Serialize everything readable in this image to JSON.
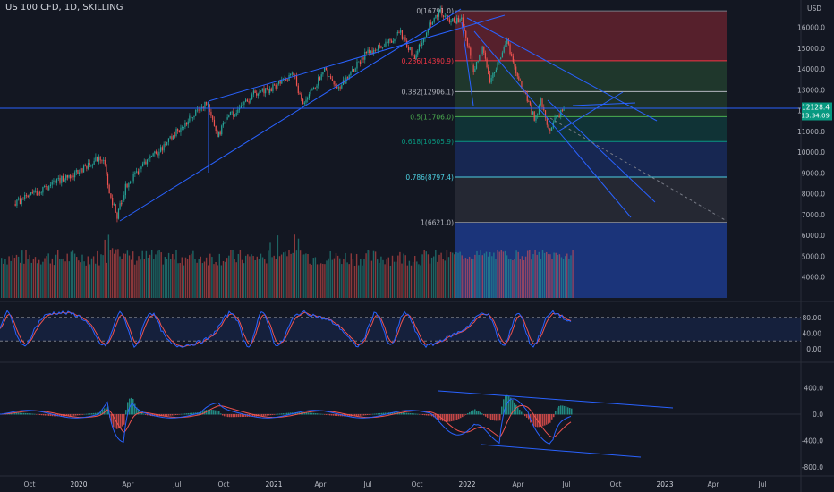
{
  "header": {
    "symbol_line": "US 100 CFD, 1D, SKILLING"
  },
  "colors": {
    "background": "#131722",
    "up": "#26a69a",
    "down": "#ef5350",
    "line": "#2962ff",
    "stoch_k": "#2962ff",
    "stoch_d": "#ef5350",
    "axis_text": "#b2b5be"
  },
  "chart_data": [
    {
      "type": "candlestick",
      "title": "US 100 CFD, 1D, SKILLING",
      "price_axis": {
        "unit_label": "USD",
        "ticks": [
          "16000.0",
          "15000.0",
          "14000.0",
          "13000.0",
          "12000.0",
          "11000.0",
          "10000.0",
          "9000.0",
          "8000.0",
          "7000.0",
          "6000.0",
          "5000.0",
          "4000.0"
        ],
        "current_price": "12128.4",
        "countdown": "13:34:09"
      },
      "time_axis": {
        "labels": [
          "Oct",
          "2020",
          "Apr",
          "Jul",
          "Oct",
          "2021",
          "Apr",
          "Jul",
          "Oct",
          "2022",
          "Apr",
          "Jul",
          "Oct",
          "2023",
          "Apr",
          "Jul"
        ]
      },
      "fibonacci": {
        "levels": [
          {
            "ratio": "0",
            "price": "16791.0",
            "label": "0(16791.0)"
          },
          {
            "ratio": "0.236",
            "price": "14390.9",
            "label": "0.236(14390.9)"
          },
          {
            "ratio": "0.382",
            "price": "12906.1",
            "label": "0.382(12906.1)"
          },
          {
            "ratio": "0.5",
            "price": "11706.0",
            "label": "0.5(11706.0)"
          },
          {
            "ratio": "0.618",
            "price": "10505.9",
            "label": "0.618(10505.9)"
          },
          {
            "ratio": "0.786",
            "price": "8797.4",
            "label": "0.786(8797.4)"
          },
          {
            "ratio": "1",
            "price": "6621.0",
            "label": "1(6621.0)"
          }
        ]
      },
      "price_path": {
        "dates": [
          "2019-09-01",
          "2019-10-01",
          "2019-11-01",
          "2019-12-01",
          "2020-01-01",
          "2020-02-01",
          "2020-02-19",
          "2020-03-01",
          "2020-03-16",
          "2020-04-01",
          "2020-05-01",
          "2020-06-01",
          "2020-07-01",
          "2020-08-01",
          "2020-09-02",
          "2020-09-23",
          "2020-10-12",
          "2020-11-01",
          "2020-12-01",
          "2021-01-01",
          "2021-02-15",
          "2021-03-05",
          "2021-04-15",
          "2021-05-12",
          "2021-06-01",
          "2021-07-01",
          "2021-08-01",
          "2021-09-07",
          "2021-10-04",
          "2021-11-01",
          "2021-11-22",
          "2021-12-15",
          "2022-01-01",
          "2022-01-24",
          "2022-02-10",
          "2022-02-24",
          "2022-03-29",
          "2022-04-15",
          "2022-05-01",
          "2022-05-20",
          "2022-06-01",
          "2022-06-16",
          "2022-07-01",
          "2022-07-15"
        ],
        "close": [
          7500,
          7900,
          8300,
          8700,
          9000,
          9600,
          9700,
          8000,
          6900,
          8300,
          9300,
          10000,
          10800,
          11600,
          12400,
          10700,
          11800,
          11900,
          12800,
          13000,
          13800,
          12200,
          14000,
          13000,
          13700,
          14700,
          15100,
          15700,
          14500,
          16200,
          16700,
          16300,
          16400,
          14000,
          15000,
          13400,
          15300,
          13900,
          12900,
          11600,
          12400,
          11100,
          11600,
          12128
        ]
      },
      "panels": [
        {
          "name": "stochastic",
          "ticks": [
            "80.00",
            "40.00",
            "0.00"
          ],
          "upper_band": 80,
          "lower_band": 20
        },
        {
          "name": "macd",
          "ticks": [
            "400.0",
            "0.0",
            "-400.0",
            "-800.0"
          ]
        }
      ]
    }
  ]
}
